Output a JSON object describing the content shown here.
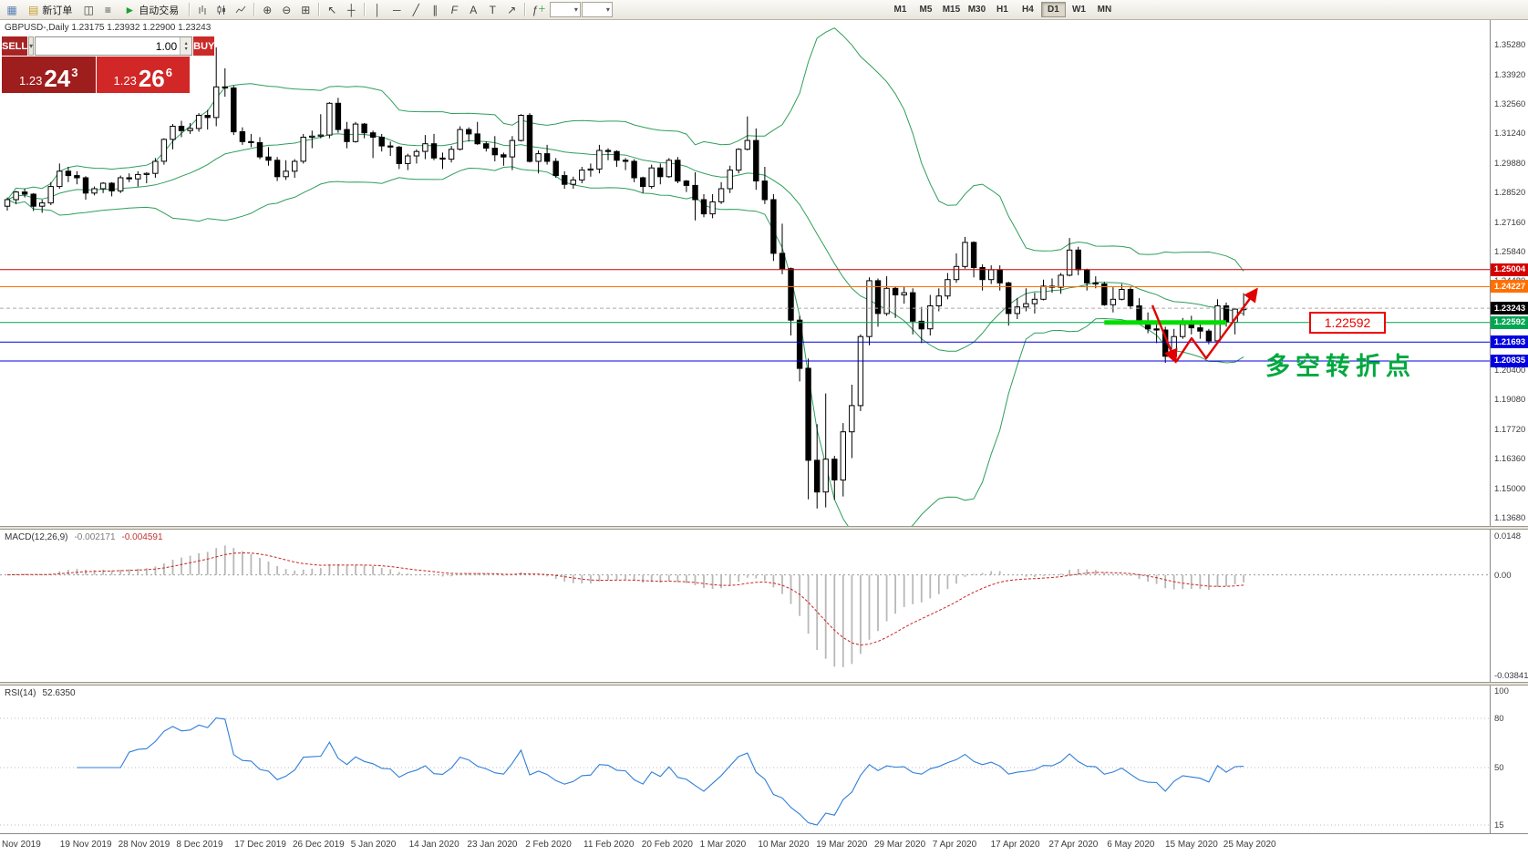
{
  "toolbar": {
    "new_order_label": "新订单",
    "auto_trading_label": "自动交易",
    "timeframes": [
      "M1",
      "M5",
      "M15",
      "M30",
      "H1",
      "H4",
      "D1",
      "W1",
      "MN"
    ],
    "active_timeframe": "D1"
  },
  "trade_panel": {
    "sell_label": "SELL",
    "buy_label": "BUY",
    "volume": "1.00",
    "sell_price_base": "1.23",
    "sell_price_pips": "24",
    "sell_price_point": "3",
    "buy_price_base": "1.23",
    "buy_price_pips": "26",
    "buy_price_point": "6"
  },
  "chart": {
    "symbol_line": "GBPUSD-,Daily  1.23175 1.23932 1.22900 1.23243"
  },
  "chart_data": {
    "type": "candlestick",
    "symbol": "GBPUSD",
    "timeframe": "Daily",
    "last_ohlc": {
      "open": 1.23175,
      "high": 1.23932,
      "low": 1.229,
      "close": 1.23243
    },
    "ylim": [
      1.133,
      1.364
    ],
    "y_tick_labels": [
      "1.35280",
      "1.33920",
      "1.32560",
      "1.31240",
      "1.29880",
      "1.28520",
      "1.27160",
      "1.25840",
      "1.24480",
      "1.23120",
      "1.21760",
      "1.20400",
      "1.19080",
      "1.17720",
      "1.16360",
      "1.15000",
      "1.13680"
    ],
    "x_date_labels": [
      "Nov 2019",
      "19 Nov 2019",
      "28 Nov 2019",
      "8 Dec 2019",
      "17 Dec 2019",
      "26 Dec 2019",
      "5 Jan 2020",
      "14 Jan 2020",
      "23 Jan 2020",
      "2 Feb 2020",
      "11 Feb 2020",
      "20 Feb 2020",
      "1 Mar 2020",
      "10 Mar 2020",
      "19 Mar 2020",
      "29 Mar 2020",
      "7 Apr 2020",
      "17 Apr 2020",
      "27 Apr 2020",
      "6 May 2020",
      "15 May 2020",
      "25 May 2020"
    ],
    "bollinger": {
      "period": 20,
      "deviation": 2,
      "color": "#2e9e5b"
    },
    "levels": [
      {
        "label": "1.25004",
        "price": 1.25004,
        "color": "#d40000",
        "style": "solid"
      },
      {
        "label": "1.24227",
        "price": 1.24227,
        "color": "#ff7000",
        "style": "solid"
      },
      {
        "label": "1.23243",
        "price": 1.23243,
        "color": "#000000",
        "line_color": "#aaaaaa",
        "style": "dashed"
      },
      {
        "label": "1.22592",
        "price": 1.22592,
        "color": "#00a651",
        "style": "solid"
      },
      {
        "label": "1.21693",
        "price": 1.21693,
        "color": "#0000e0",
        "style": "solid"
      },
      {
        "label": "1.20835",
        "price": 1.20835,
        "color": "#0000e0",
        "style": "solid"
      }
    ],
    "highlight_segment": {
      "price": 1.22592,
      "x_from_bar": 126,
      "x_to_bar": 140,
      "color": "#00dd00",
      "width": 5
    },
    "annotations": {
      "level_label": "1.22592",
      "note": "多空转折点",
      "note_color": "#00a83f",
      "arrow_color": "#e00000"
    },
    "macd": {
      "label": "MACD(12,26,9)",
      "value_main": "-0.002171",
      "value_signal": "-0.004591",
      "params": [
        12,
        26,
        9
      ],
      "tick_labels": [
        "0.0148",
        "0.00",
        "-0.038415"
      ],
      "tick_values": [
        0.0148,
        0,
        -0.038415
      ],
      "bar_color": "#b8b8b8",
      "signal_color": "#cc2222"
    },
    "rsi": {
      "label": "RSI(14)",
      "value": "52.6350",
      "period": 14,
      "tick_labels": [
        "100",
        "80",
        "50",
        "15"
      ],
      "tick_values": [
        100,
        80,
        50,
        15
      ],
      "levels": [
        80,
        50,
        15
      ],
      "line_color": "#2f7ed8",
      "range": [
        10,
        100
      ]
    },
    "ohlc": [
      [
        1.279,
        1.283,
        1.277,
        1.282
      ],
      [
        1.282,
        1.286,
        1.28,
        1.2855
      ],
      [
        1.2855,
        1.287,
        1.283,
        1.2845
      ],
      [
        1.2845,
        1.285,
        1.2768,
        1.279
      ],
      [
        1.279,
        1.282,
        1.276,
        1.2805
      ],
      [
        1.2805,
        1.29,
        1.2795,
        1.288
      ],
      [
        1.288,
        1.2985,
        1.287,
        1.295
      ],
      [
        1.295,
        1.297,
        1.29,
        1.293
      ],
      [
        1.293,
        1.295,
        1.289,
        1.292
      ],
      [
        1.292,
        1.2927,
        1.282,
        1.285
      ],
      [
        1.285,
        1.288,
        1.284,
        1.287
      ],
      [
        1.287,
        1.29,
        1.285,
        1.2895
      ],
      [
        1.2895,
        1.29,
        1.2835,
        1.286
      ],
      [
        1.286,
        1.293,
        1.285,
        1.292
      ],
      [
        1.292,
        1.294,
        1.29,
        1.2915
      ],
      [
        1.2915,
        1.295,
        1.288,
        1.2935
      ],
      [
        1.2935,
        1.2945,
        1.2895,
        1.294
      ],
      [
        1.294,
        1.301,
        1.292,
        1.2995
      ],
      [
        1.2995,
        1.31,
        1.298,
        1.3095
      ],
      [
        1.3095,
        1.3165,
        1.305,
        1.3155
      ],
      [
        1.3155,
        1.318,
        1.3105,
        1.3135
      ],
      [
        1.3135,
        1.317,
        1.312,
        1.3145
      ],
      [
        1.3145,
        1.3215,
        1.313,
        1.3205
      ],
      [
        1.3205,
        1.323,
        1.314,
        1.3195
      ],
      [
        1.3195,
        1.3515,
        1.3155,
        1.3335
      ],
      [
        1.3335,
        1.342,
        1.329,
        1.333
      ],
      [
        1.333,
        1.334,
        1.3115,
        1.313
      ],
      [
        1.313,
        1.315,
        1.307,
        1.3085
      ],
      [
        1.3085,
        1.312,
        1.306,
        1.308
      ],
      [
        1.308,
        1.3105,
        1.3005,
        1.3015
      ],
      [
        1.3015,
        1.306,
        1.2975,
        1.3
      ],
      [
        1.3,
        1.3015,
        1.2905,
        1.2925
      ],
      [
        1.2925,
        1.3,
        1.291,
        1.295
      ],
      [
        1.295,
        1.3005,
        1.292,
        1.2995
      ],
      [
        1.2995,
        1.312,
        1.2985,
        1.3105
      ],
      [
        1.3105,
        1.3135,
        1.3055,
        1.311
      ],
      [
        1.311,
        1.321,
        1.31,
        1.3115
      ],
      [
        1.3115,
        1.3265,
        1.31,
        1.326
      ],
      [
        1.326,
        1.3285,
        1.3125,
        1.314
      ],
      [
        1.314,
        1.3175,
        1.3055,
        1.3085
      ],
      [
        1.3085,
        1.3175,
        1.308,
        1.3165
      ],
      [
        1.3165,
        1.317,
        1.31,
        1.3125
      ],
      [
        1.3125,
        1.3135,
        1.301,
        1.3105
      ],
      [
        1.3105,
        1.312,
        1.304,
        1.3065
      ],
      [
        1.3065,
        1.3085,
        1.302,
        1.306
      ],
      [
        1.306,
        1.3065,
        1.296,
        1.2985
      ],
      [
        1.2985,
        1.303,
        1.2955,
        1.302
      ],
      [
        1.302,
        1.305,
        1.2985,
        1.304
      ],
      [
        1.304,
        1.3115,
        1.3005,
        1.3075
      ],
      [
        1.3075,
        1.312,
        1.3,
        1.301
      ],
      [
        1.301,
        1.3035,
        1.296,
        1.3005
      ],
      [
        1.3005,
        1.3065,
        1.299,
        1.305
      ],
      [
        1.305,
        1.3155,
        1.3045,
        1.314
      ],
      [
        1.314,
        1.315,
        1.3085,
        1.312
      ],
      [
        1.312,
        1.3175,
        1.307,
        1.3075
      ],
      [
        1.3075,
        1.3085,
        1.304,
        1.3055
      ],
      [
        1.3055,
        1.311,
        1.2995,
        1.3025
      ],
      [
        1.3025,
        1.3035,
        1.2975,
        1.3015
      ],
      [
        1.3015,
        1.311,
        1.2955,
        1.309
      ],
      [
        1.309,
        1.321,
        1.3085,
        1.3205
      ],
      [
        1.3205,
        1.3215,
        1.299,
        1.2995
      ],
      [
        1.2995,
        1.3045,
        1.294,
        1.303
      ],
      [
        1.303,
        1.307,
        1.298,
        1.2995
      ],
      [
        1.2995,
        1.301,
        1.292,
        1.293
      ],
      [
        1.293,
        1.295,
        1.287,
        1.289
      ],
      [
        1.289,
        1.2925,
        1.287,
        1.291
      ],
      [
        1.291,
        1.297,
        1.2895,
        1.2955
      ],
      [
        1.2955,
        1.2985,
        1.2925,
        1.296
      ],
      [
        1.296,
        1.307,
        1.294,
        1.3045
      ],
      [
        1.3045,
        1.3055,
        1.3,
        1.304
      ],
      [
        1.304,
        1.3045,
        1.297,
        1.3
      ],
      [
        1.3,
        1.301,
        1.2955,
        1.2995
      ],
      [
        1.2995,
        1.3005,
        1.29,
        1.292
      ],
      [
        1.292,
        1.2925,
        1.285,
        1.288
      ],
      [
        1.288,
        1.298,
        1.287,
        1.2965
      ],
      [
        1.2965,
        1.2985,
        1.289,
        1.2925
      ],
      [
        1.2925,
        1.301,
        1.292,
        1.3
      ],
      [
        1.3,
        1.3015,
        1.2895,
        1.2905
      ],
      [
        1.2905,
        1.291,
        1.2855,
        1.2885
      ],
      [
        1.2885,
        1.2945,
        1.2725,
        1.282
      ],
      [
        1.282,
        1.2845,
        1.274,
        1.2755
      ],
      [
        1.2755,
        1.2845,
        1.2735,
        1.281
      ],
      [
        1.281,
        1.29,
        1.28,
        1.287
      ],
      [
        1.287,
        1.2975,
        1.285,
        1.2955
      ],
      [
        1.2955,
        1.3055,
        1.294,
        1.305
      ],
      [
        1.305,
        1.32,
        1.3045,
        1.309
      ],
      [
        1.309,
        1.3145,
        1.2865,
        1.2905
      ],
      [
        1.2905,
        1.297,
        1.28,
        1.282
      ],
      [
        1.282,
        1.2845,
        1.254,
        1.2575
      ],
      [
        1.2575,
        1.271,
        1.248,
        1.2505
      ],
      [
        1.2505,
        1.251,
        1.22,
        1.227
      ],
      [
        1.227,
        1.229,
        1.199,
        1.205
      ],
      [
        1.205,
        1.2095,
        1.1452,
        1.163
      ],
      [
        1.163,
        1.1795,
        1.141,
        1.1485
      ],
      [
        1.1485,
        1.1935,
        1.1415,
        1.1635
      ],
      [
        1.1635,
        1.165,
        1.145,
        1.154
      ],
      [
        1.154,
        1.18,
        1.1465,
        1.176
      ],
      [
        1.176,
        1.1975,
        1.164,
        1.188
      ],
      [
        1.188,
        1.2205,
        1.1855,
        1.2195
      ],
      [
        1.2195,
        1.2465,
        1.2155,
        1.245
      ],
      [
        1.245,
        1.246,
        1.224,
        1.23
      ],
      [
        1.23,
        1.247,
        1.229,
        1.2415
      ],
      [
        1.2415,
        1.2425,
        1.228,
        1.2385
      ],
      [
        1.2385,
        1.2425,
        1.2345,
        1.2395
      ],
      [
        1.2395,
        1.2415,
        1.2205,
        1.2265
      ],
      [
        1.2265,
        1.233,
        1.2165,
        1.223
      ],
      [
        1.223,
        1.2385,
        1.22,
        1.2335
      ],
      [
        1.2335,
        1.2415,
        1.231,
        1.238
      ],
      [
        1.238,
        1.2485,
        1.2365,
        1.2455
      ],
      [
        1.2455,
        1.2575,
        1.244,
        1.2515
      ],
      [
        1.2515,
        1.265,
        1.2505,
        1.2625
      ],
      [
        1.2625,
        1.263,
        1.2465,
        1.251
      ],
      [
        1.251,
        1.2525,
        1.2405,
        1.2455
      ],
      [
        1.2455,
        1.252,
        1.2435,
        1.25
      ],
      [
        1.25,
        1.252,
        1.2405,
        1.244
      ],
      [
        1.244,
        1.2445,
        1.2245,
        1.23
      ],
      [
        1.23,
        1.237,
        1.2275,
        1.233
      ],
      [
        1.233,
        1.2415,
        1.231,
        1.2345
      ],
      [
        1.2345,
        1.2395,
        1.23,
        1.2365
      ],
      [
        1.2365,
        1.2455,
        1.236,
        1.2425
      ],
      [
        1.2425,
        1.246,
        1.2395,
        1.242
      ],
      [
        1.242,
        1.2485,
        1.239,
        1.2475
      ],
      [
        1.2475,
        1.2645,
        1.247,
        1.259
      ],
      [
        1.259,
        1.2605,
        1.2475,
        1.25
      ],
      [
        1.25,
        1.2505,
        1.2405,
        1.244
      ],
      [
        1.244,
        1.247,
        1.2415,
        1.2435
      ],
      [
        1.2435,
        1.2445,
        1.2335,
        1.234
      ],
      [
        1.234,
        1.242,
        1.2305,
        1.2365
      ],
      [
        1.2365,
        1.2435,
        1.236,
        1.241
      ],
      [
        1.241,
        1.242,
        1.232,
        1.2335
      ],
      [
        1.2335,
        1.237,
        1.225,
        1.226
      ],
      [
        1.226,
        1.2305,
        1.221,
        1.223
      ],
      [
        1.223,
        1.225,
        1.2165,
        1.2225
      ],
      [
        1.2225,
        1.224,
        1.2075,
        1.2105
      ],
      [
        1.2105,
        1.223,
        1.21,
        1.2195
      ],
      [
        1.2195,
        1.228,
        1.2185,
        1.225
      ],
      [
        1.225,
        1.229,
        1.2205,
        1.2235
      ],
      [
        1.2235,
        1.2255,
        1.2185,
        1.222
      ],
      [
        1.222,
        1.223,
        1.216,
        1.2175
      ],
      [
        1.2175,
        1.2365,
        1.217,
        1.2335
      ],
      [
        1.2335,
        1.235,
        1.224,
        1.226
      ],
      [
        1.226,
        1.2325,
        1.2205,
        1.232
      ],
      [
        1.23175,
        1.23932,
        1.229,
        1.23243
      ]
    ]
  }
}
